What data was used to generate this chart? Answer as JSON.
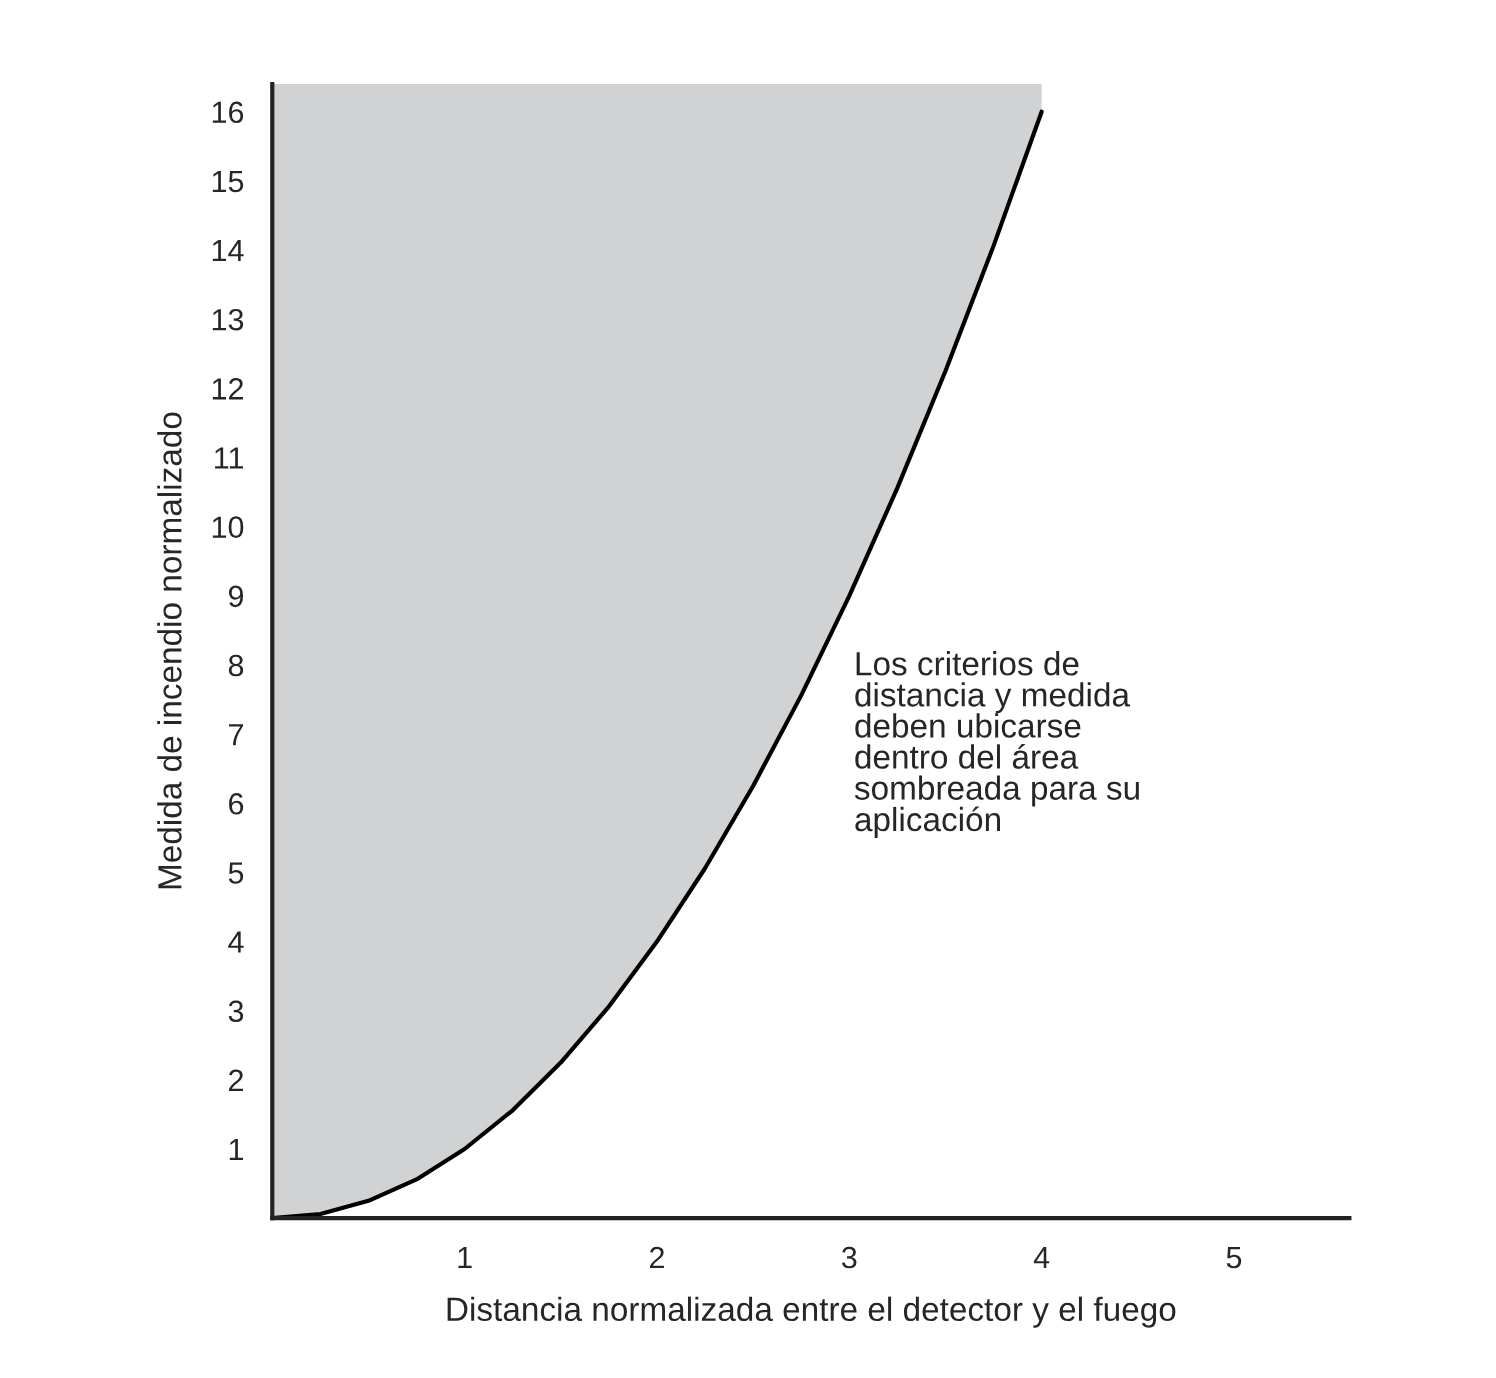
{
  "chart_data": {
    "type": "line",
    "xlabel": "Distancia normalizada entre el detector y el fuego",
    "ylabel": "Medida de incendio normalizado",
    "series": [
      {
        "color": "#000000",
        "x": [
          0,
          0.25,
          0.5,
          0.75,
          1,
          1.25,
          1.5,
          1.75,
          2,
          2.25,
          2.5,
          2.75,
          3,
          3.25,
          3.5,
          3.75,
          4.0
        ],
        "values": [
          0,
          0.06,
          0.25,
          0.56,
          1.0,
          1.56,
          2.25,
          3.06,
          4.0,
          5.06,
          6.25,
          7.56,
          9.0,
          10.56,
          12.25,
          14.06,
          16.0
        ],
        "lower": [
          0,
          0.06,
          0.25,
          0.56,
          1.0,
          1.56,
          2.25,
          3.06,
          4.0,
          5.06,
          6.25,
          7.56,
          9.0,
          10.56,
          12.25,
          14.06,
          16.0
        ],
        "upper": [
          16.4,
          16.4,
          16.4,
          16.4,
          16.4,
          16.4,
          16.4,
          16.4,
          16.4,
          16.4,
          16.4,
          16.4,
          16.4,
          16.4,
          16.4,
          16.4,
          16.4
        ]
      }
    ],
    "xlim": [
      0,
      5.6
    ],
    "ylim": [
      0,
      16.4
    ],
    "xticks": [
      1,
      2,
      3,
      4,
      5
    ],
    "yticks": [
      1,
      2,
      3,
      4,
      5,
      6,
      7,
      8,
      9,
      10,
      11,
      12,
      13,
      14,
      15,
      16
    ],
    "grid": false,
    "legend": false,
    "annotations": [
      "Los criterios de\ndistancia y medida\ndeben ubicarse\ndentro del área\nsombreada para su\naplicación"
    ]
  }
}
